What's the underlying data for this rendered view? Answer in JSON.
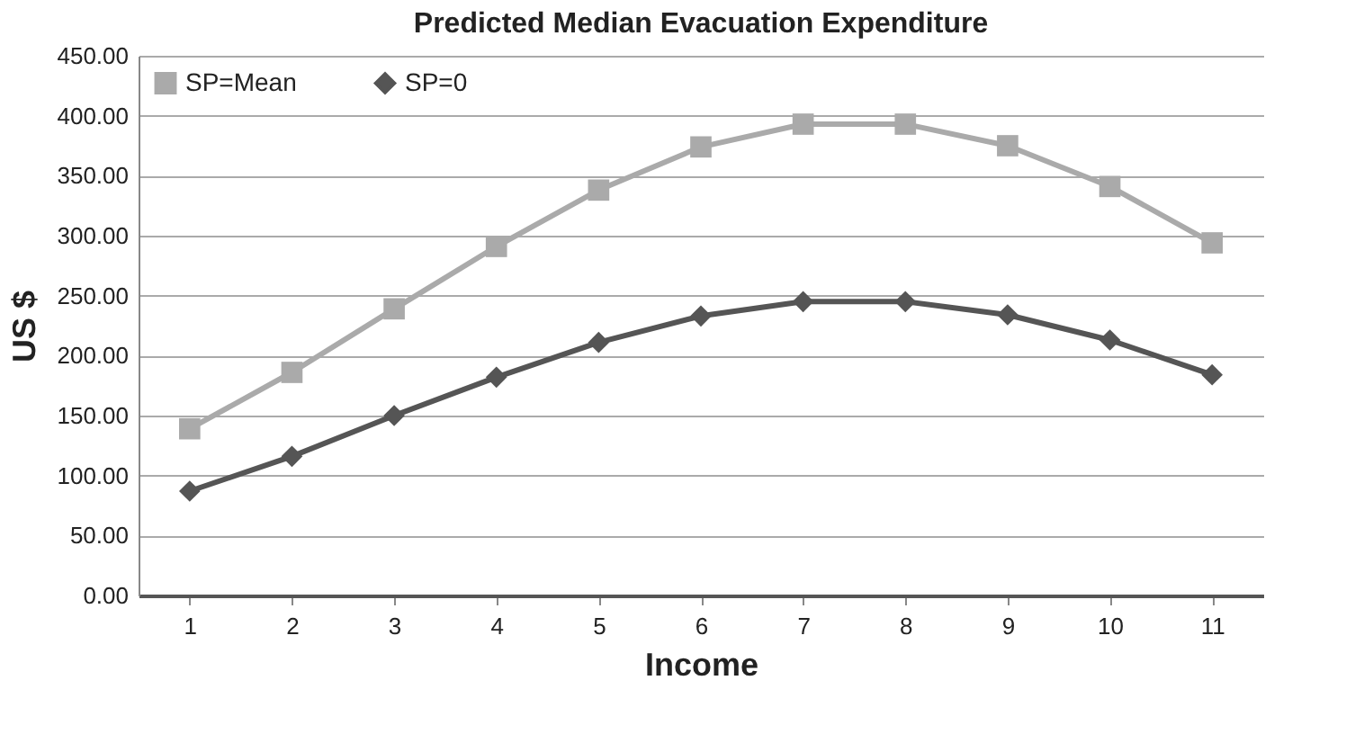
{
  "chart_data": {
    "type": "line",
    "title": "Predicted Median Evacuation Expenditure",
    "xlabel": "Income",
    "ylabel": "US $",
    "categories": [
      "1",
      "2",
      "3",
      "4",
      "5",
      "6",
      "7",
      "8",
      "9",
      "10",
      "11"
    ],
    "series": [
      {
        "name": "SP=Mean",
        "color": "#aaaaaa",
        "marker": "square",
        "values": [
          139,
          186,
          239,
          291,
          338,
          374,
          393,
          393,
          375,
          341,
          294
        ]
      },
      {
        "name": "SP=0",
        "color": "#555555",
        "marker": "diamond",
        "values": [
          87,
          116,
          150,
          182,
          211,
          233,
          245,
          245,
          234,
          213,
          184
        ]
      }
    ],
    "ylim": [
      0,
      450
    ],
    "yticks": [
      {
        "value": 0,
        "label": "0.00"
      },
      {
        "value": 50,
        "label": "50.00"
      },
      {
        "value": 100,
        "label": "100.00"
      },
      {
        "value": 150,
        "label": "150.00"
      },
      {
        "value": 200,
        "label": "200.00"
      },
      {
        "value": 250,
        "label": "250.00"
      },
      {
        "value": 300,
        "label": "300.00"
      },
      {
        "value": 350,
        "label": "350.00"
      },
      {
        "value": 400,
        "label": "400.00"
      },
      {
        "value": 450,
        "label": "450.00"
      }
    ],
    "grid": "y",
    "legend": "top left",
    "line_style": "solid"
  }
}
